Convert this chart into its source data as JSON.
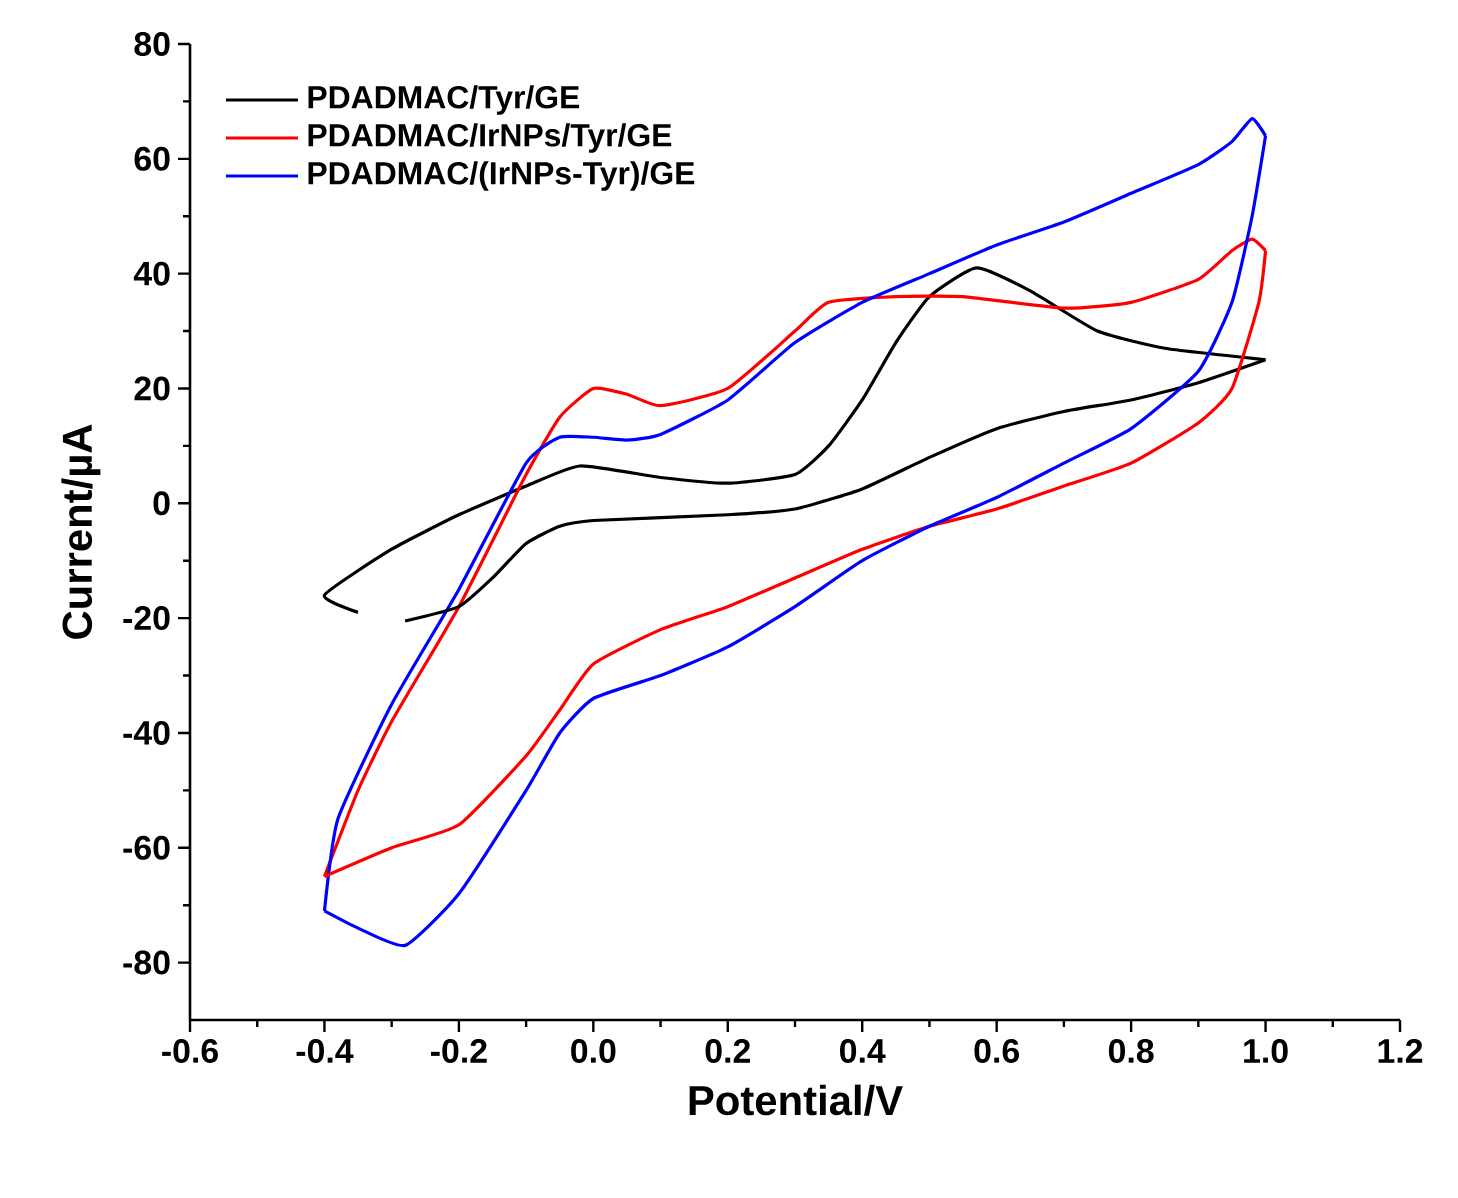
{
  "chart_data": {
    "type": "line",
    "xlabel": "Potential/V",
    "ylabel": "Current/µA",
    "xlim": [
      -0.6,
      1.2
    ],
    "ylim": [
      -90,
      80
    ],
    "xticks": [
      {
        "value": -0.6,
        "label": "-0.6"
      },
      {
        "value": -0.4,
        "label": "-0.4"
      },
      {
        "value": -0.2,
        "label": "-0.2"
      },
      {
        "value": 0,
        "label": "0.0"
      },
      {
        "value": 0.2,
        "label": "0.2"
      },
      {
        "value": 0.4,
        "label": "0.4"
      },
      {
        "value": 0.6,
        "label": "0.6"
      },
      {
        "value": 0.8,
        "label": "0.8"
      },
      {
        "value": 1.0,
        "label": "1.0"
      },
      {
        "value": 1.2,
        "label": "1.2"
      }
    ],
    "yticks": [
      -80,
      -60,
      -40,
      -20,
      0,
      20,
      40,
      60,
      80
    ],
    "legend": "top left",
    "line_style": "solid",
    "series": [
      {
        "name": "PDADMAC/Tyr/GE",
        "color": "#000000",
        "x": [
          -0.35,
          -0.4,
          -0.3,
          -0.2,
          -0.1,
          -0.02,
          0.1,
          0.2,
          0.3,
          0.35,
          0.4,
          0.45,
          0.5,
          0.57,
          0.65,
          0.75,
          0.85,
          1.0
        ],
        "values": [
          -19,
          -16,
          -8,
          -2,
          3,
          6.5,
          4.5,
          3.5,
          5,
          10,
          18,
          28,
          36,
          41,
          37,
          30,
          27,
          25
        ]
      },
      {
        "name": "PDADMAC/IrNPs/Tyr/GE",
        "color": "#ff0000",
        "x": [
          -0.4,
          -0.35,
          -0.3,
          -0.2,
          -0.1,
          -0.05,
          0.0,
          0.05,
          0.1,
          0.2,
          0.3,
          0.35,
          0.45,
          0.55,
          0.7,
          0.8,
          0.9,
          0.95,
          0.98,
          1.0
        ],
        "values": [
          -65,
          -50,
          -38,
          -18,
          5,
          15,
          20,
          19,
          17,
          20,
          30,
          35,
          36,
          36,
          34,
          35,
          39,
          44,
          46,
          44
        ]
      },
      {
        "name": "PDADMAC/(IrNPs-Tyr)/GE",
        "color": "#0000ff",
        "x": [
          -0.4,
          -0.38,
          -0.3,
          -0.2,
          -0.1,
          -0.05,
          0.0,
          0.05,
          0.1,
          0.2,
          0.3,
          0.4,
          0.5,
          0.6,
          0.7,
          0.8,
          0.9,
          0.95,
          0.98,
          1.0
        ],
        "values": [
          -71,
          -55,
          -35,
          -15,
          7,
          11.5,
          11.5,
          11,
          12,
          18,
          28,
          35,
          40,
          45,
          49,
          54,
          59,
          63,
          67,
          64
        ]
      },
      {
        "color": "#000000",
        "x": [
          1.0,
          0.9,
          0.8,
          0.7,
          0.6,
          0.5,
          0.4,
          0.3,
          0.2,
          0.0,
          -0.05,
          -0.1,
          -0.15,
          -0.2,
          -0.28
        ],
        "values": [
          25,
          21,
          18,
          16,
          13,
          8,
          2.5,
          -1,
          -2,
          -3,
          -4,
          -7,
          -13,
          -18,
          -20.5
        ]
      },
      {
        "color": "#ff0000",
        "x": [
          1.0,
          0.99,
          0.95,
          0.9,
          0.8,
          0.7,
          0.6,
          0.5,
          0.4,
          0.3,
          0.2,
          0.1,
          0.0,
          -0.05,
          -0.1,
          -0.2,
          -0.3,
          -0.4
        ],
        "values": [
          44,
          35,
          20,
          14,
          7,
          3,
          -1,
          -4,
          -8,
          -13,
          -18,
          -22,
          -28,
          -36,
          -44,
          -56,
          -60,
          -65
        ]
      },
      {
        "color": "#0000ff",
        "x": [
          1.0,
          0.98,
          0.95,
          0.9,
          0.8,
          0.7,
          0.6,
          0.5,
          0.4,
          0.3,
          0.2,
          0.1,
          0.0,
          -0.05,
          -0.1,
          -0.2,
          -0.28,
          -0.35,
          -0.4
        ],
        "values": [
          64,
          50,
          35,
          23,
          13,
          7,
          1,
          -4,
          -10,
          -18,
          -25,
          -30,
          -34,
          -40,
          -50,
          -68,
          -77,
          -74,
          -71
        ]
      }
    ]
  }
}
